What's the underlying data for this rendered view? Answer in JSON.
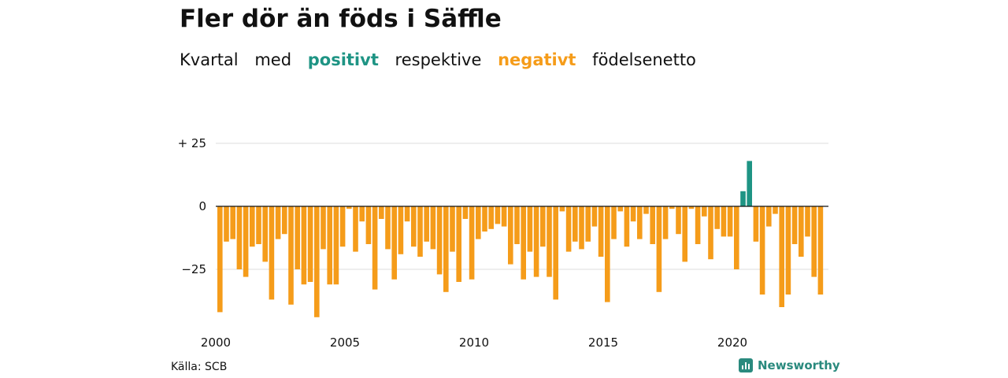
{
  "title": "Fler dör än föds i Säffle",
  "subtitle": {
    "part1": "Kvartal",
    "part2": "med",
    "positive_word": "positivt",
    "part3": "respektive",
    "negative_word": "negativt",
    "part4": "födelsenetto"
  },
  "source": "Källa: SCB",
  "brand": "Newsworthy",
  "colors": {
    "positive": "#1e9484",
    "negative": "#f59c1a",
    "grid": "#dddddd"
  },
  "chart_data": {
    "type": "bar",
    "xlabel": "",
    "ylabel": "",
    "ylim": [
      -45,
      30
    ],
    "y_ticks": [
      {
        "value": 25,
        "label": "+ 25"
      },
      {
        "value": 0,
        "label": "0"
      },
      {
        "value": -25,
        "label": "−25"
      }
    ],
    "x_ticks": [
      {
        "year": 2000,
        "label": "2000"
      },
      {
        "year": 2005,
        "label": "2005"
      },
      {
        "year": 2010,
        "label": "2010"
      },
      {
        "year": 2015,
        "label": "2015"
      },
      {
        "year": 2020,
        "label": "2020"
      }
    ],
    "start_year": 2000,
    "values": [
      -42,
      -14,
      -13,
      -25,
      -28,
      -16,
      -15,
      -22,
      -37,
      -13,
      -11,
      -39,
      -25,
      -31,
      -30,
      -44,
      -17,
      -31,
      -31,
      -16,
      -1,
      -18,
      -6,
      -15,
      -33,
      -5,
      -17,
      -29,
      -19,
      -6,
      -16,
      -20,
      -14,
      -17,
      -27,
      -34,
      -18,
      -30,
      -5,
      -29,
      -13,
      -10,
      -9,
      -7,
      -8,
      -23,
      -15,
      -29,
      -18,
      -28,
      -16,
      -28,
      -37,
      -2,
      -18,
      -14,
      -17,
      -14,
      -8,
      -20,
      -38,
      -13,
      -2,
      -16,
      -6,
      -13,
      -3,
      -15,
      -34,
      -13,
      -1,
      -11,
      -22,
      -1,
      -15,
      -4,
      -21,
      -9,
      -12,
      -12,
      -25,
      6,
      18,
      -14,
      -35,
      -8,
      -3,
      -40,
      -35,
      -15,
      -20,
      -12,
      -28,
      -35
    ]
  }
}
